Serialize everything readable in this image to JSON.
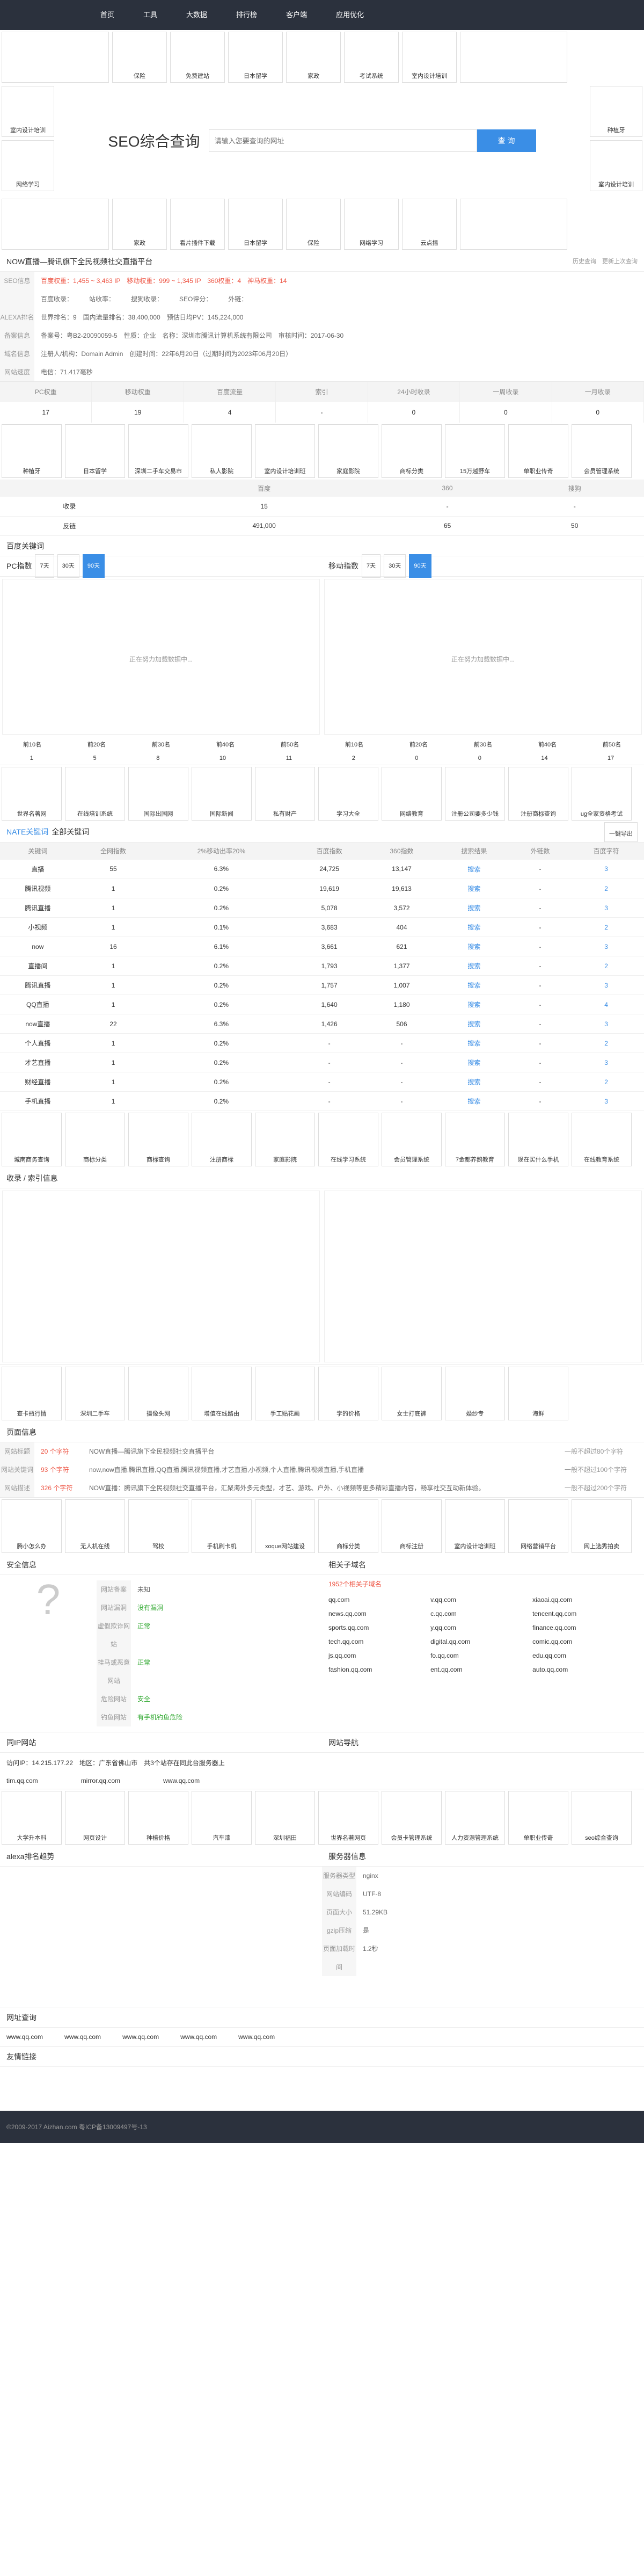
{
  "nav": [
    "首页",
    "工具",
    "大数据",
    "排行榜",
    "客户端",
    "应用优化"
  ],
  "ads_top": [
    "",
    "保险",
    "免费建站",
    "日本留学",
    "家政",
    "考试系统",
    "室内设计培训",
    "",
    ""
  ],
  "ads_left": [
    "室内设计培训",
    "网络学习",
    "保险"
  ],
  "ads_right": [
    "种植牙",
    "室内设计培训",
    "网络学习"
  ],
  "ads_bottom2": [
    "",
    "家政",
    "看片插件下载",
    "日本留学",
    "保险",
    "网络学习",
    "云点播",
    ""
  ],
  "search": {
    "title": "SEO综合查询",
    "placeholder": "请输入您要查询的网址",
    "button": "查 询"
  },
  "site": {
    "title": "NOW直播—腾讯旗下全民视频社交直播平台",
    "note": "历史查询",
    "note2": "更新上次查询"
  },
  "info": [
    {
      "label": "SEO信息",
      "value": "百度权重：1,455 ~ 3,463 IP　移动权重：999 ~ 1,345 IP　360权重：4　神马权重：14"
    },
    {
      "label": "",
      "value": "百度收录：　　　站收率：　　　搜狗收录：　　　SEO评分：　　　外链："
    },
    {
      "label": "ALEXA排名",
      "value": "世界排名：9　国内流量排名：38,400,000　预估日均PV：145,224,000"
    },
    {
      "label": "备案信息",
      "value": "备案号：粤B2-20090059-5　性质：企业　名称：深圳市腾讯计算机系统有限公司　审核时间：2017-06-30"
    },
    {
      "label": "域名信息",
      "value": "注册人/机构：Domain Admin　创建时间：22年6月20日（过期时间为2023年06月20日）"
    },
    {
      "label": "网站速度",
      "value": "电信：71.417毫秒"
    }
  ],
  "stats_head": [
    "PC权重",
    "移动权重",
    "百度流量",
    "索引",
    "24小时收录",
    "一周收录",
    "一月收录"
  ],
  "stats_val": [
    "17",
    "19",
    "4",
    "-",
    "0",
    "0",
    "0"
  ],
  "ads_mid": [
    "种植牙",
    "日本留学",
    "深圳二手车交易市",
    "私人影院",
    "室内设计培训班",
    "家庭影院",
    "商标分类",
    "15万越野车",
    "单职业传奇",
    "会员管理系统"
  ],
  "baidu_hd": [
    "",
    "百度",
    "360",
    "搜狗"
  ],
  "baidu_rows": [
    [
      "收录",
      "15",
      "-",
      "-"
    ],
    [
      "反链",
      "491,000",
      "-",
      "65",
      "50"
    ]
  ],
  "kw_title": "百度关键词",
  "pc_label": "PC指数",
  "mobile_label": "移动指数",
  "tabs": [
    "7天",
    "30天",
    "90天"
  ],
  "loading": "正在努力加载数据中...",
  "legend": [
    "前10名",
    "前20名",
    "前30名",
    "前40名",
    "前50名"
  ],
  "pc_counts": [
    "1",
    "5",
    "8",
    "10",
    "11"
  ],
  "mo_counts": [
    "2",
    "0",
    "0",
    "14",
    "17"
  ],
  "ads_kw": [
    "世界名著网",
    "在线培训系统",
    "",
    "",
    "国际出国网",
    "国际新闻",
    "私有财产",
    "学习大全",
    "网络教育",
    "注册公司要多少钱",
    "注册商标查询",
    "ug全家资格考试"
  ],
  "kw_tabs": [
    "NATE关键词",
    "全部关键词"
  ],
  "kw_export": "一键导出",
  "kw_head": [
    "关键词",
    "全网指数",
    "2%移动出率20%",
    "百度指数",
    "360指数",
    "搜索结果",
    "外链数",
    "百度字符"
  ],
  "kw_rows": [
    [
      "直播",
      "55",
      "6.3%",
      "24,725",
      "13,147",
      "搜索",
      "-",
      "3"
    ],
    [
      "腾讯视频",
      "1",
      "0.2%",
      "19,619",
      "19,613",
      "搜索",
      "-",
      "2"
    ],
    [
      "腾讯直播",
      "1",
      "0.2%",
      "5,078",
      "3,572",
      "搜索",
      "-",
      "3"
    ],
    [
      "小视频",
      "1",
      "0.1%",
      "3,683",
      "404",
      "搜索",
      "-",
      "2"
    ],
    [
      "now",
      "16",
      "6.1%",
      "3,661",
      "621",
      "搜索",
      "-",
      "3"
    ],
    [
      "直播间",
      "1",
      "0.2%",
      "1,793",
      "1,377",
      "搜索",
      "-",
      "2"
    ],
    [
      "腾讯直播",
      "1",
      "0.2%",
      "1,757",
      "1,007",
      "搜索",
      "-",
      "3"
    ],
    [
      "QQ直播",
      "1",
      "0.2%",
      "1,640",
      "1,180",
      "搜索",
      "-",
      "4"
    ],
    [
      "now直播",
      "22",
      "6.3%",
      "1,426",
      "506",
      "搜索",
      "-",
      "3"
    ],
    [
      "个人直播",
      "1",
      "0.2%",
      "-",
      "-",
      "搜索",
      "-",
      "2"
    ],
    [
      "才艺直播",
      "1",
      "0.2%",
      "-",
      "-",
      "搜索",
      "-",
      "3"
    ],
    [
      "财经直播",
      "1",
      "0.2%",
      "-",
      "-",
      "搜索",
      "-",
      "2"
    ],
    [
      "手机直播",
      "1",
      "0.2%",
      "-",
      "-",
      "搜索",
      "-",
      "3"
    ]
  ],
  "ads_kw2": [
    "城南商务查询",
    "商标分类",
    "商标查询",
    "注册商标",
    "家庭影院",
    "在线学习系统",
    "会员管理系统",
    "7金都养鹅教育",
    "现在买什么手机",
    "在线教育系统",
    "艺术留学研究生"
  ],
  "shoulu_title": "收录 / 索引信息",
  "ads_row3": [
    "查卡瓶行情",
    "深圳二手车",
    "",
    "摄像头网",
    "增值在线路由",
    "手工贴花画",
    "学的价格",
    "女士打底裤",
    "婚纱专",
    "海鲜"
  ],
  "page_title": "页面信息",
  "page_rows": [
    {
      "k": "网站标题",
      "len": "20 个字符",
      "v": "NOW直播—腾讯旗下全民视频社交直播平台",
      "r": "一般不超过80个字符"
    },
    {
      "k": "网站关键词",
      "len": "93 个字符",
      "v": "now,now直播,腾讯直播,QQ直播,腾讯视频直播,才艺直播,小视频,个人直播,腾讯视频直播,手机直播",
      "r": "一般不超过100个字符"
    },
    {
      "k": "网站描述",
      "len": "326 个字符",
      "v": "NOW直播：腾讯旗下全民视频社交直播平台，汇聚海外多元类型，才艺、游戏、户外、小视频等更多精彩直播内容，畅享社交互动新体验。",
      "r": "一般不超过200个字符"
    }
  ],
  "ads_row4": [
    "腾小怎么办",
    "无人机在线",
    "",
    "驾校",
    "手机刷卡机",
    "xoque网站建设",
    "商标分类",
    "商标注册",
    "室内设计培训班",
    "网络营销平台",
    "网上选秀拍卖"
  ],
  "safety_title": "安全信息",
  "safety_rows": [
    [
      "网站备案",
      "未知"
    ],
    [
      "网站漏洞",
      "没有漏洞"
    ],
    [
      "虚假欺诈网站",
      "正常"
    ],
    [
      "挂马或恶意网站",
      "正常"
    ],
    [
      "危险网站",
      "安全"
    ],
    [
      "钓鱼网站",
      "有手机钓鱼危险"
    ]
  ],
  "sub_title": "相关子域名",
  "sub_count": "1952个相关子域名",
  "subdomains": [
    "qq.com",
    "v.qq.com",
    "xiaoai.qq.com",
    "news.qq.com",
    "c.qq.com",
    "tencent.qq.com",
    "sports.qq.com",
    "y.qq.com",
    "finance.qq.com",
    "tech.qq.com",
    "digital.qq.com",
    "comic.qq.com",
    "js.qq.com",
    "fo.qq.com",
    "edu.qq.com",
    "fashion.qq.com",
    "ent.qq.com",
    "auto.qq.com"
  ],
  "ip_title": "同IP网站",
  "ip_line": "访问IP：14.215.177.22　地区：广东省佛山市　共3个站存在同此台服务器上",
  "ip_sites": [
    "tim.qq.com",
    "mirror.qq.com",
    "www.qq.com"
  ],
  "nav_title": "网站导航",
  "ads_row5": [
    "大学升本科",
    "网页设计",
    "",
    "种植价格",
    "汽车漆",
    "深圳福田",
    "世界名著网页",
    "会员卡管理系统",
    "人力资源管理系统",
    "单职业传奇",
    "seo综合查询"
  ],
  "alexa_title": "alexa排名趋势",
  "server_title": "服务器信息",
  "server_rows": [
    [
      "服务器类型",
      "nginx"
    ],
    [
      "网站编码",
      "UTF-8"
    ],
    [
      "页面大小",
      "51.29KB"
    ],
    [
      "gzip压缩",
      "是"
    ],
    [
      "页面加载时间",
      "1.2秒"
    ]
  ],
  "footer_links_title": "网址查询",
  "footer_links": [
    "www.qq.com",
    "www.qq.com",
    "www.qq.com",
    "www.qq.com",
    "www.qq.com"
  ],
  "friend_title": "友情链接",
  "footer_copy": "©2009-2017 Aizhan.com 粤ICP备13009497号-13"
}
